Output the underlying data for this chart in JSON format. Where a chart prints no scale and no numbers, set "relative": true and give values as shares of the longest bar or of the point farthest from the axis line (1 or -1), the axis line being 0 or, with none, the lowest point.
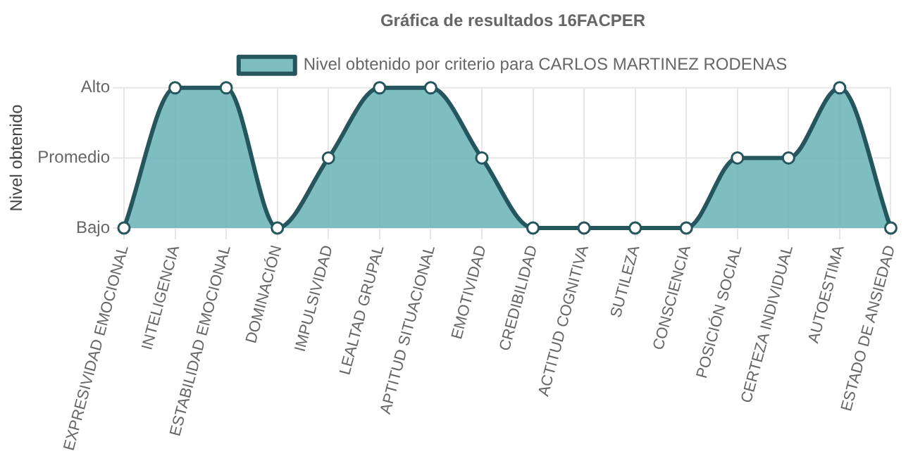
{
  "chart_data": {
    "type": "area",
    "title": "Gráfica de resultados 16FACPER",
    "ylabel": "Nivel obtenido",
    "relative": true,
    "categories": [
      "EXPRESIVIDAD EMOCIONAL",
      "INTELIGENCIA",
      "ESTABILIDAD EMOCIONAL",
      "DOMINACIÓN",
      "IMPULSIVIDAD",
      "LEALTAD GRUPAL",
      "APTITUD SITUACIONAL",
      "EMOTIVIDAD",
      "CREDIBILIDAD",
      "ACTITUD COGNITIVA",
      "SUTILEZA",
      "CONSCIENCIA",
      "POSICIÓN SOCIAL",
      "CERTEZA INDIVIDUAL",
      "AUTOESTIMA",
      "ESTADO DE ANSIEDAD"
    ],
    "y_categories": [
      "Alto",
      "Promedio",
      "Bajo"
    ],
    "series": [
      {
        "name": "Nivel obtenido por criterio para CARLOS MARTINEZ RODENAS",
        "color": "#6ab4b6",
        "values": [
          0,
          1,
          1,
          0,
          0.5,
          1,
          1,
          0.5,
          0,
          0,
          0,
          0,
          0.5,
          0.5,
          1,
          0
        ]
      }
    ],
    "grid": true,
    "legend": "top",
    "marker": "circle",
    "line_style": "solid"
  }
}
